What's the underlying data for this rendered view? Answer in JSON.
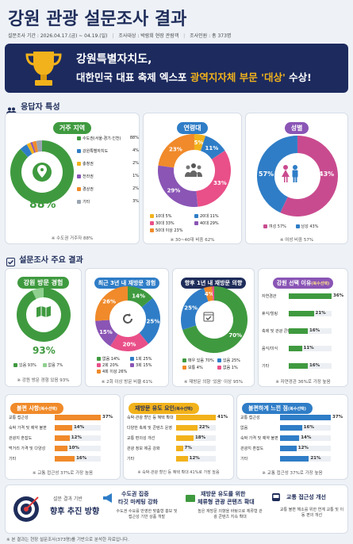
{
  "title": "강원 관광 설문조사 결과",
  "meta": {
    "period": "설문조사 기간 : 2026.04.17.(금) ~ 04.19.(일)",
    "target": "조사대상 : 박람회 현장 관람객",
    "count": "조사인원 : 총 373명"
  },
  "banner": {
    "line1": "강원특별자치도,",
    "line2a": "대한민국 대표 축제 엑스포 ",
    "line2b": "광역지자체 부문 '대상'",
    "line2c": " 수상!"
  },
  "sec1": "응답자 특성",
  "residence": {
    "title": "거주 지역",
    "center": "88%",
    "items": [
      {
        "label": "수도권(서울·경기·인천)",
        "v": "88%"
      },
      {
        "label": "강원특별자치도",
        "v": "4%"
      },
      {
        "label": "충청권",
        "v": "2%"
      },
      {
        "label": "전라권",
        "v": "1%"
      },
      {
        "label": "경상권",
        "v": "2%"
      },
      {
        "label": "기타",
        "v": "3%"
      }
    ],
    "note": "※ 수도권 거주자 88%"
  },
  "age": {
    "title": "연령대",
    "slices": [
      {
        "label": "10대",
        "v": "5%",
        "n": 5
      },
      {
        "label": "20대",
        "v": "11%",
        "n": 11
      },
      {
        "label": "30대",
        "v": "33%",
        "n": 33
      },
      {
        "label": "40대",
        "v": "29%",
        "n": 29
      },
      {
        "label": "50대 이상",
        "v": "23%",
        "n": 23
      }
    ],
    "note": "※ 30~40대 비중 62%"
  },
  "gender": {
    "title": "성별",
    "female": "57%",
    "male": "43%",
    "leg_f": "여성",
    "leg_fv": "57%",
    "leg_m": "남성",
    "leg_mv": "43%",
    "note": "※ 여성 비중 57%"
  },
  "sec2": "설문조사 주요 결과",
  "exp": {
    "title": "강원 방문 경험",
    "center": "93%",
    "a": "있음",
    "av": "93%",
    "b": "없음",
    "bv": "7%",
    "note": "※ 강원 방문 경험 있음 93%"
  },
  "rev": {
    "title": "최근 3년 내 재방문 경험",
    "slices": [
      {
        "label": "없음",
        "v": "14%"
      },
      {
        "label": "1회",
        "v": "25%"
      },
      {
        "label": "2회",
        "v": "20%"
      },
      {
        "label": "3회",
        "v": "15%"
      },
      {
        "label": "4회 이상",
        "v": "26%"
      }
    ],
    "note": "※ 2회 이상 방문 비율 61%"
  },
  "intent": {
    "title": "향후 1년 내 재방문 의향",
    "slices": [
      {
        "label": "매우 있음",
        "v": "70%"
      },
      {
        "label": "있음",
        "v": "25%"
      },
      {
        "label": "보통",
        "v": "4%"
      },
      {
        "label": "없음",
        "v": "1%"
      }
    ],
    "note": "※ 재방문 의향 '있음' 이상 95%"
  },
  "reason": {
    "title": "강원 선택 이유",
    "sub": "(복수선택)",
    "items": [
      {
        "label": "자연경관",
        "v": "36%",
        "n": 36
      },
      {
        "label": "휴식/힐링",
        "v": "21%",
        "n": 21
      },
      {
        "label": "축제 및 관광 콘텐츠",
        "v": "16%",
        "n": 16
      },
      {
        "label": "음식/미식",
        "v": "11%",
        "n": 11
      },
      {
        "label": "기타",
        "v": "16%",
        "n": 16
      }
    ],
    "note": "※ 자연경관 36%로 가장 높음"
  },
  "cons": {
    "title": "불편 사항",
    "sub": "(복수선택)",
    "items": [
      {
        "label": "교통 접근성",
        "v": "37%",
        "n": 37
      },
      {
        "label": "숙박 가격 및 예약 불편",
        "v": "14%",
        "n": 14
      },
      {
        "label": "관광지 혼잡도",
        "v": "12%",
        "n": 12
      },
      {
        "label": "먹거리 가격 및 다양성",
        "v": "10%",
        "n": 10
      },
      {
        "label": "기타",
        "v": "16%",
        "n": 16
      }
    ],
    "note": "※ 교통 접근성 37%로 가장 높음"
  },
  "factor": {
    "title": "재방문 유도 요인",
    "sub": "(복수선택)",
    "items": [
      {
        "label": "숙박·관광 할인 등 혜택 확대",
        "v": "41%",
        "n": 41
      },
      {
        "label": "다양한 축제 및 콘텐츠 운영",
        "v": "22%",
        "n": 22
      },
      {
        "label": "교통 편의성 개선",
        "v": "18%",
        "n": 18
      },
      {
        "label": "관광 정보 제공 강화",
        "v": "7%",
        "n": 7
      },
      {
        "label": "기타",
        "v": "12%",
        "n": 12
      }
    ],
    "note": "※ 숙박·관광 할인 등 혜택 확대 41%로 가장 높음"
  },
  "point": {
    "title": "불편하게 느낀 점",
    "sub": "(복수선택)",
    "items": [
      {
        "label": "교통 접근성",
        "v": "37%",
        "n": 37
      },
      {
        "label": "없음",
        "v": "16%",
        "n": 16
      },
      {
        "label": "숙박 가격 및 예약 불편",
        "v": "14%",
        "n": 14
      },
      {
        "label": "관광지 혼잡도",
        "v": "12%",
        "n": 12
      },
      {
        "label": "기타",
        "v": "21%",
        "n": 21
      }
    ],
    "note": "※ 교통 접근성 37%로 가장 높음"
  },
  "dir": {
    "small": "설문 결과 기반",
    "big": "향후 추진 방향",
    "cols": [
      {
        "t1": "수도권 집중",
        "t2": "타깃 마케팅 강화",
        "d": "수도권 수요를 반영한 맞춤형 홍보 및 접근성 기반 상품 개발"
      },
      {
        "t1": "재방문 유도를 위한",
        "t2": "체류형 관광 콘텐츠 확대",
        "d": "높은 재방문 의향을 바탕으로 체류형 관광 콘텐츠 지속 확대"
      },
      {
        "t1": "교통 접근성 개선",
        "t2": "",
        "d": "교통 불편 해소를 위한 연계 교통 및 이동 편의 개선"
      }
    ]
  },
  "footer": "※ 본 결과는 현장 설문조사(373명)를 기반으로 분석한 자료입니다.",
  "colors": {
    "navy": "#1f2d5a",
    "green": "#3f9a3f",
    "blue": "#2f7dc7",
    "orange": "#f08a2a",
    "purple": "#8a55b5",
    "yellow": "#f2b21b"
  }
}
